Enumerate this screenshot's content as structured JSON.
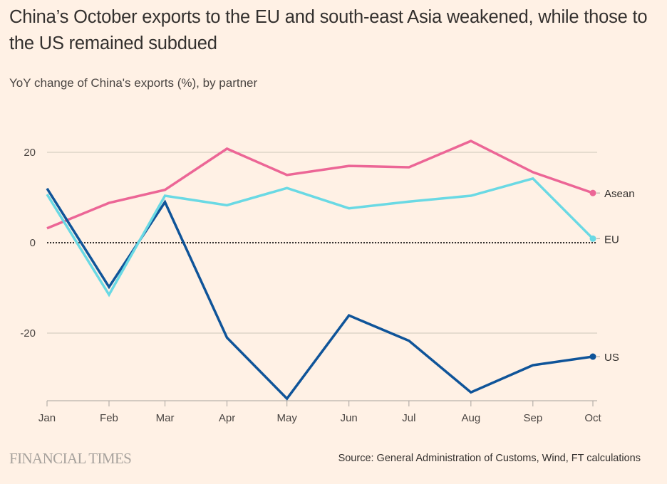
{
  "header": {
    "title": "China’s October exports to the EU and south-east Asia weakened, while those to the US remained subdued",
    "subtitle": "YoY change of China's exports (%), by partner"
  },
  "footer": {
    "logo": "FINANCIAL TIMES",
    "source": "Source: General Administration of Customs, Wind, FT calculations"
  },
  "chart_data": {
    "type": "line",
    "title": "China’s October exports to the EU and south-east Asia weakened, while those to the US remained subdued",
    "subtitle": "YoY change of China's exports (%), by partner",
    "xlabel": "",
    "ylabel": "YoY change (%)",
    "categories": [
      "Jan",
      "Feb",
      "Mar",
      "Apr",
      "May",
      "Jun",
      "Jul",
      "Aug",
      "Sep",
      "Oct"
    ],
    "x_day_of_year": [
      1,
      32,
      60,
      91,
      121,
      152,
      182,
      213,
      244,
      274
    ],
    "ylim": [
      -35,
      28
    ],
    "yticks": [
      20,
      0,
      -20
    ],
    "ytick_labels": [
      "20",
      "0",
      "-20"
    ],
    "grid": true,
    "zero_line": "dotted",
    "legend": "direct-labels-right",
    "series": [
      {
        "name": "Asean",
        "color": "#ec6696",
        "values": [
          3.2,
          8.8,
          11.7,
          20.8,
          15.0,
          17.0,
          16.7,
          22.5,
          15.6,
          11.0
        ]
      },
      {
        "name": "EU",
        "color": "#6ad9e4",
        "values": [
          10.7,
          -11.5,
          10.4,
          8.3,
          12.1,
          7.6,
          9.1,
          10.4,
          14.2,
          0.9
        ]
      },
      {
        "name": "US",
        "color": "#0f5499",
        "values": [
          12.0,
          -9.8,
          9.0,
          -21.0,
          -34.5,
          -16.1,
          -21.7,
          -33.1,
          -27.1,
          -25.2
        ]
      }
    ]
  }
}
